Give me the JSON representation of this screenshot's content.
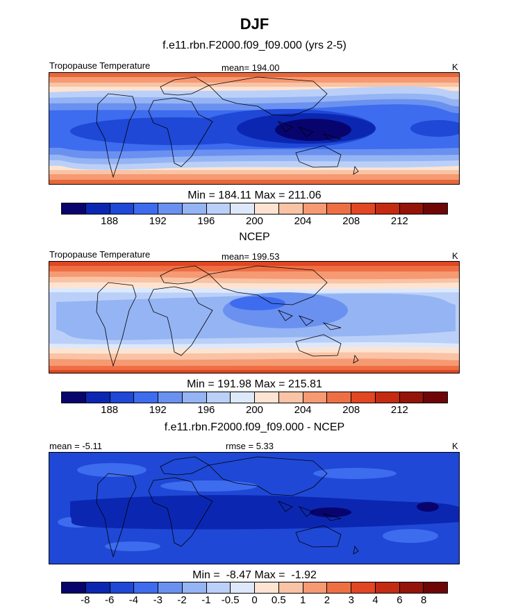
{
  "title": "DJF",
  "panels": [
    {
      "heading": "f.e11.rbn.F2000.f09_f09.000 (yrs 2-5)",
      "left_label": "Tropopause Temperature",
      "center_label": "mean= 194.00",
      "right_label": "K",
      "stats": "Min = 184.11 Max = 211.06",
      "tick_labels": [
        "188",
        "192",
        "196",
        "200",
        "204",
        "208",
        "212"
      ],
      "colors": [
        "#08046e",
        "#0b27b2",
        "#1f48d6",
        "#3d6cee",
        "#6a91f0",
        "#95b4f4",
        "#bbd0f8",
        "#dde9fb",
        "#fde4d2",
        "#f9c3a5",
        "#f59a73",
        "#ef6f45",
        "#e04722",
        "#c42b12",
        "#951409",
        "#6e0507"
      ]
    },
    {
      "heading": "NCEP",
      "left_label": "Tropopause Temperature",
      "center_label": "mean= 199.53",
      "right_label": "K",
      "stats": "Min = 191.98 Max = 215.81",
      "tick_labels": [
        "188",
        "192",
        "196",
        "200",
        "204",
        "208",
        "212"
      ],
      "colors": [
        "#08046e",
        "#0b27b2",
        "#1f48d6",
        "#3d6cee",
        "#6a91f0",
        "#95b4f4",
        "#bbd0f8",
        "#dde9fb",
        "#fde4d2",
        "#f9c3a5",
        "#f59a73",
        "#ef6f45",
        "#e04722",
        "#c42b12",
        "#951409",
        "#6e0507"
      ]
    },
    {
      "heading": "f.e11.rbn.F2000.f09_f09.000 - NCEP",
      "left_label": "mean =  -5.11",
      "center_label": "rmse =   5.33",
      "right_label": "K",
      "stats": "Min =  -8.47 Max =  -1.92",
      "tick_labels": [
        "-8",
        "-6",
        "-4",
        "-3",
        "-2",
        "-1",
        "-0.5",
        "0",
        "0.5",
        "1",
        "2",
        "3",
        "4",
        "6",
        "8"
      ],
      "colors": [
        "#08046e",
        "#0b27b2",
        "#1f48d6",
        "#3d6cee",
        "#6a91f0",
        "#95b4f4",
        "#bbd0f8",
        "#dde9fb",
        "#fde4d2",
        "#f9c3a5",
        "#f59a73",
        "#ef6f45",
        "#e04722",
        "#c42b12",
        "#951409",
        "#6e0507"
      ]
    }
  ]
}
